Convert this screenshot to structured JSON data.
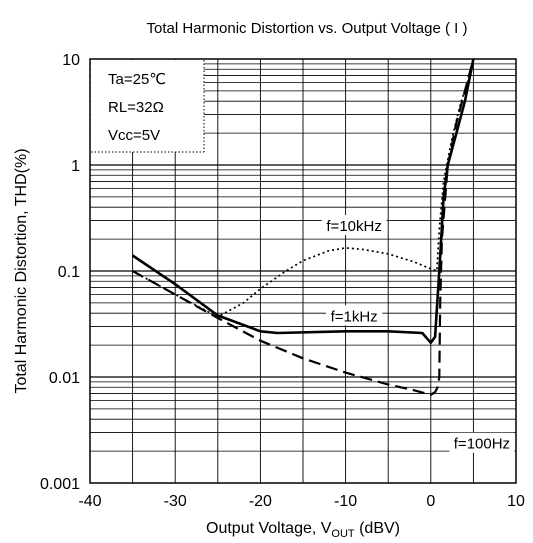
{
  "chart_data": {
    "type": "line",
    "title": "Total Harmonic Distortion vs. Output Voltage ( I )",
    "xlabel": {
      "main": "Output Voltage, V",
      "sub": "OUT",
      "unit": " (dBV)"
    },
    "ylabel": "Total Harmonic Distortion, THD(%)",
    "xlim": [
      -40,
      10
    ],
    "ylim": [
      0.001,
      10
    ],
    "yscale": "log",
    "grid": true,
    "x_ticks": [
      "-40",
      "-30",
      "-20",
      "-10",
      "0",
      "10"
    ],
    "y_ticks": [
      "0.001",
      "0.01",
      "0.1",
      "1",
      "10"
    ],
    "conditions": [
      "Ta=25℃",
      "RL=32Ω",
      "Vcc=5V"
    ],
    "series": [
      {
        "name": "f=10kHz",
        "style": "dotted",
        "points": [
          [
            -35,
            0.1
          ],
          [
            -30,
            0.06
          ],
          [
            -25,
            0.037
          ],
          [
            -22,
            0.05
          ],
          [
            -20,
            0.068
          ],
          [
            -17,
            0.1
          ],
          [
            -15,
            0.125
          ],
          [
            -12,
            0.155
          ],
          [
            -10,
            0.165
          ],
          [
            -8,
            0.16
          ],
          [
            -5,
            0.145
          ],
          [
            -2,
            0.122
          ],
          [
            0,
            0.105
          ],
          [
            0.7,
            0.1
          ],
          [
            1,
            0.25
          ],
          [
            1.5,
            0.7
          ],
          [
            2.5,
            1.8
          ],
          [
            3.5,
            3.8
          ],
          [
            5,
            9
          ]
        ]
      },
      {
        "name": "f=1kHz",
        "style": "solid",
        "points": [
          [
            -35,
            0.14
          ],
          [
            -30,
            0.075
          ],
          [
            -25,
            0.038
          ],
          [
            -20,
            0.027
          ],
          [
            -18,
            0.026
          ],
          [
            -10,
            0.027
          ],
          [
            -5,
            0.027
          ],
          [
            -1,
            0.026
          ],
          [
            0,
            0.021
          ],
          [
            0.5,
            0.024
          ],
          [
            1,
            0.1
          ],
          [
            1.5,
            0.5
          ],
          [
            2,
            1.0
          ],
          [
            3,
            2.0
          ],
          [
            4,
            4.0
          ],
          [
            5,
            10
          ]
        ]
      },
      {
        "name": "f=100Hz",
        "style": "dashed",
        "points": [
          [
            -35,
            0.1
          ],
          [
            -30,
            0.06
          ],
          [
            -25,
            0.036
          ],
          [
            -20,
            0.022
          ],
          [
            -15,
            0.015
          ],
          [
            -10,
            0.011
          ],
          [
            -5,
            0.0085
          ],
          [
            -2,
            0.0075
          ],
          [
            0,
            0.0068
          ],
          [
            0.5,
            0.0072
          ],
          [
            0.8,
            0.008
          ],
          [
            1,
            0.01
          ],
          [
            1.1,
            0.05
          ],
          [
            1.3,
            0.2
          ],
          [
            2,
            1.0
          ],
          [
            3,
            2.5
          ],
          [
            5,
            10
          ]
        ]
      }
    ]
  }
}
